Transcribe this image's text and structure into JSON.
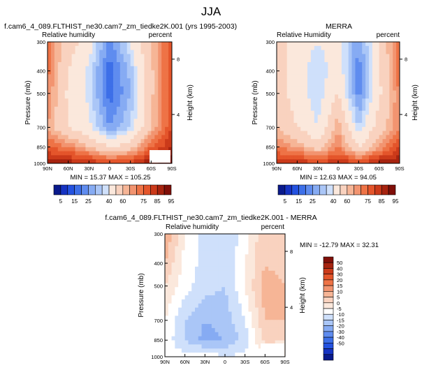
{
  "figure_title": "JJA",
  "colors": {
    "humidity_levels": [
      "#0a1a8c",
      "#1633c2",
      "#2452e0",
      "#3d6fe8",
      "#5f8cef",
      "#86abf3",
      "#aac6f7",
      "#cfe0fb",
      "#fbe8dc",
      "#f9d2bf",
      "#f6b596",
      "#f29470",
      "#ee7346",
      "#e4552b",
      "#cb3a1a",
      "#a6230f",
      "#800f08"
    ],
    "difference_levels": [
      "#0a1a8c",
      "#1633c2",
      "#2452e0",
      "#3d6fe8",
      "#5f8cef",
      "#86abf3",
      "#aac6f7",
      "#cfe0fb",
      "#ffffff",
      "#fbe8dc",
      "#f9d2bf",
      "#f6b596",
      "#f29470",
      "#ee7346",
      "#e4552b",
      "#cb3a1a",
      "#a6230f",
      "#800f08"
    ],
    "missing": "#ffffff"
  },
  "chart_data": [
    {
      "type": "heatmap",
      "title": "f.cam6_4_089.FLTHIST_ne30.cam7_zm_tiedke2K.001 (yrs 1995-2003)",
      "left_label": "Relative humidity",
      "right_label": "percent",
      "ylabel": "Pressure (mb)",
      "y2label": "Height (km)",
      "x_ticks": [
        "90N",
        "60N",
        "30N",
        "0",
        "30S",
        "60S",
        "90S"
      ],
      "y_ticks": [
        "300",
        "400",
        "500",
        "700",
        "850",
        "1000"
      ],
      "y2_ticks": [
        "8",
        "4"
      ],
      "ylim": [
        1000,
        300
      ],
      "x": [
        90,
        60,
        30,
        0,
        -30,
        -60,
        -90
      ],
      "y": [
        300,
        400,
        500,
        700,
        850,
        1000
      ],
      "z": [
        [
          72,
          55,
          45,
          22,
          40,
          60,
          80
        ],
        [
          72,
          50,
          38,
          17,
          32,
          58,
          80
        ],
        [
          70,
          48,
          38,
          17,
          30,
          58,
          80
        ],
        [
          65,
          50,
          42,
          25,
          35,
          60,
          80
        ],
        [
          75,
          70,
          60,
          50,
          55,
          75,
          85
        ],
        [
          90,
          88,
          85,
          80,
          82,
          90,
          95
        ]
      ],
      "min_max": "MIN = 15.37   MAX = 105.25"
    },
    {
      "type": "heatmap",
      "title": "MERRA",
      "left_label": "Relative Humidity",
      "right_label": "percent",
      "ylabel": "Pressure (mb)",
      "y2label": "Height (km)",
      "x_ticks": [
        "90N",
        "60N",
        "30N",
        "0",
        "30S",
        "60S",
        "90S"
      ],
      "y_ticks": [
        "300",
        "400",
        "500",
        "700",
        "850",
        "1000"
      ],
      "y2_ticks": [
        "8",
        "4"
      ],
      "ylim": [
        1000,
        300
      ],
      "x": [
        90,
        60,
        30,
        0,
        -30,
        -60,
        -90
      ],
      "y": [
        300,
        400,
        500,
        700,
        850,
        1000
      ],
      "z": [
        [
          55,
          45,
          40,
          45,
          25,
          50,
          75
        ],
        [
          55,
          45,
          35,
          45,
          22,
          48,
          75
        ],
        [
          55,
          45,
          35,
          50,
          22,
          48,
          70
        ],
        [
          60,
          50,
          40,
          65,
          35,
          55,
          70
        ],
        [
          70,
          65,
          55,
          70,
          50,
          65,
          80
        ],
        [
          85,
          85,
          80,
          85,
          80,
          88,
          90
        ]
      ],
      "min_max": "MIN = 12.63   MAX = 94.05"
    },
    {
      "type": "heatmap",
      "title": "f.cam6_4_089.FLTHIST_ne30.cam7_zm_tiedke2K.001 - MERRA",
      "left_label": "Relative humidity",
      "right_label": "percent",
      "ylabel": "Pressure (mb)",
      "y2label": "Height (km)",
      "x_ticks": [
        "90N",
        "60N",
        "30N",
        "0",
        "30S",
        "60S",
        "90S"
      ],
      "y_ticks": [
        "300",
        "400",
        "500",
        "700",
        "850",
        "1000"
      ],
      "y2_ticks": [
        "8",
        "4"
      ],
      "ylim": [
        1000,
        300
      ],
      "x": [
        90,
        60,
        30,
        0,
        -30,
        -60,
        -90
      ],
      "y": [
        300,
        400,
        500,
        700,
        850,
        1000
      ],
      "z": [
        [
          20,
          5,
          -3,
          -5,
          2,
          15,
          10
        ],
        [
          15,
          3,
          -2,
          -4,
          5,
          15,
          12
        ],
        [
          10,
          2,
          -3,
          -5,
          5,
          18,
          15
        ],
        [
          5,
          -5,
          -10,
          -8,
          0,
          15,
          15
        ],
        [
          3,
          -5,
          -12,
          -10,
          -3,
          12,
          10
        ],
        [
          3,
          2,
          5,
          0,
          2,
          3,
          5
        ]
      ],
      "min_max": "MIN = -12.79   MAX = 32.31"
    }
  ],
  "colorbars": {
    "humidity": {
      "labels": [
        "5",
        "15",
        "25",
        "40",
        "60",
        "75",
        "85",
        "95"
      ],
      "levels": [
        5,
        10,
        15,
        20,
        25,
        30,
        35,
        40,
        50,
        60,
        65,
        70,
        75,
        80,
        85,
        90,
        95
      ]
    },
    "difference": {
      "labels": [
        "50",
        "40",
        "30",
        "20",
        "15",
        "10",
        "5",
        "0",
        "-5",
        "-10",
        "-15",
        "-20",
        "-30",
        "-40",
        "-50"
      ],
      "levels": [
        -50,
        -40,
        -30,
        -20,
        -15,
        -10,
        -5,
        0,
        5,
        10,
        15,
        20,
        30,
        40,
        50
      ]
    }
  }
}
